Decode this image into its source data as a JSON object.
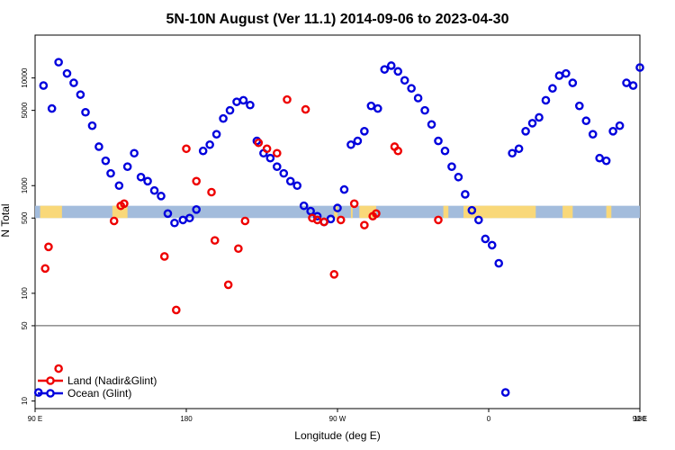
{
  "chart_data": {
    "type": "scatter",
    "title": "5N-10N August (Ver 11.1)   2014-09-06 to 2023-04-30",
    "xlabel": "Longitude (deg E)",
    "ylabel": "N Total",
    "y_scale": "log",
    "xlim": [
      90,
      450
    ],
    "ylim": [
      8.5,
      25000
    ],
    "x_ticks": [
      {
        "value": 90,
        "label": "90 E"
      },
      {
        "value": 180,
        "label": "180"
      },
      {
        "value": 270,
        "label": "90 W"
      },
      {
        "value": 360,
        "label": "0"
      },
      {
        "value": 450,
        "label": "90 E"
      }
    ],
    "x_ticks_extra": [
      {
        "value": 450,
        "label": "180"
      }
    ],
    "y_ticks": [
      {
        "value": 10,
        "label": "10"
      },
      {
        "value": 50,
        "label": "50"
      },
      {
        "value": 100,
        "label": "100"
      },
      {
        "value": 500,
        "label": "500"
      },
      {
        "value": 1000,
        "label": "1000"
      },
      {
        "value": 5000,
        "label": "5000"
      },
      {
        "value": 10000,
        "label": "10000"
      }
    ],
    "reference_line": 50,
    "legend_position": "bottom-left",
    "colors": {
      "land": "#ee0000",
      "ocean": "#0000dd",
      "map_ocean": "#a3bcdc",
      "map_land": "#f9d879",
      "refline": "#555555"
    },
    "series": [
      {
        "name": "Land (Nadir&Glint)",
        "x": [
          96,
          98,
          104,
          137,
          141,
          143,
          167,
          174,
          180,
          186,
          195,
          197,
          205,
          211,
          215,
          223,
          228,
          234,
          240,
          251,
          255,
          258,
          262,
          268,
          272,
          280,
          286,
          291,
          293,
          304,
          306,
          330
        ],
        "y": [
          170,
          270,
          20,
          470,
          650,
          680,
          220,
          70,
          2200,
          1100,
          870,
          310,
          120,
          260,
          470,
          2500,
          2200,
          2000,
          6300,
          5100,
          500,
          480,
          460,
          150,
          480,
          680,
          430,
          520,
          550,
          2300,
          2100,
          480
        ],
        "values_interpretation": "x in degrees on the 90–450 longitude scale (180 E = 180, 0 = 360)"
      },
      {
        "name": "Ocean (Glint)",
        "x": [
          92,
          95,
          100,
          104,
          109,
          113,
          117,
          120,
          124,
          128,
          132,
          135,
          140,
          145,
          149,
          153,
          157,
          161,
          165,
          169,
          173,
          178,
          182,
          186,
          190,
          194,
          198,
          202,
          206,
          210,
          214,
          218,
          222,
          226,
          230,
          234,
          238,
          242,
          246,
          250,
          254,
          258,
          262,
          266,
          270,
          274,
          278,
          282,
          286,
          290,
          294,
          298,
          302,
          306,
          310,
          314,
          318,
          322,
          326,
          330,
          334,
          338,
          342,
          346,
          350,
          354,
          358,
          362,
          366,
          370,
          374,
          378,
          382,
          386,
          390,
          394,
          398,
          402,
          406,
          410,
          414,
          418,
          422,
          426,
          430,
          434,
          438,
          442,
          446,
          450
        ],
        "y": [
          12,
          8500,
          5200,
          14000,
          11000,
          9000,
          7000,
          4800,
          3600,
          2300,
          1700,
          1300,
          1000,
          1500,
          2000,
          1200,
          1100,
          900,
          800,
          550,
          450,
          480,
          500,
          600,
          2100,
          2400,
          3000,
          4200,
          5000,
          6000,
          6200,
          5600,
          2600,
          2000,
          1800,
          1500,
          1300,
          1100,
          1000,
          650,
          580,
          520,
          460,
          490,
          620,
          920,
          2400,
          2600,
          3200,
          5500,
          5200,
          12000,
          13000,
          11500,
          9500,
          8000,
          6500,
          5000,
          3700,
          2600,
          2100,
          1500,
          1200,
          830,
          590,
          480,
          320,
          280,
          190,
          12,
          2000,
          2200,
          3200,
          3800,
          4300,
          6200,
          8000,
          10500,
          11000,
          9000,
          5500,
          4000,
          3000,
          1800,
          1700,
          3200,
          3600,
          9000,
          8500,
          12500
        ],
        "values_interpretation": "approximate"
      }
    ]
  }
}
